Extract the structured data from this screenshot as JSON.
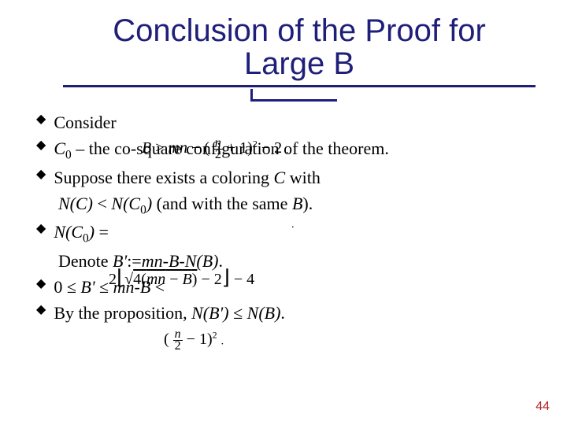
{
  "title_line1": "Conclusion of the Proof for",
  "title_line2": "Large B",
  "title_fontsize": 40,
  "title_color": "#1f1f7a",
  "rule_color": "#1f1f7a",
  "body_fontsize": 22,
  "body_color": "#000000",
  "bullets": [
    {
      "text": "Consider",
      "overlay_math": "B > mn − ( n/2 + 1)² − 2"
    },
    {
      "html": "<i>C</i><span class=\"sub\">0</span> – the co-square configuration of the theorem."
    },
    {
      "html": "Suppose there exists a coloring <i>C</i> with"
    },
    {
      "cont": true,
      "html": "<i>N(C)</i> < <i>N(C</i><span class=\"sub\">0</span><i>)</i> (and with the same <i>B</i>)."
    },
    {
      "html": "<i>N(C</i><span class=\"sub\">0</span><i>)</i> ="
    },
    {
      "cont": true,
      "html": "Denote <i>B'</i>:=<i>mn</i>-<i>B</i>-<i>N(B)</i>.",
      "overlay_math": "2⌊ √(4(mn − B)) − 2 ⌋ − 4"
    },
    {
      "html": "0 ≤ <i>B'</i> ≤ <i>mn-B</i> <"
    },
    {
      "html": "By the proposition, <i>N(B')</i> ≤ <i>N(B)</i>.",
      "overlay_math": "( n/2 − 1)²"
    }
  ],
  "page_number": "44",
  "page_number_color": "#b22222",
  "page_number_fontsize": 16,
  "background": "#ffffff",
  "rule_tick_left": 318
}
